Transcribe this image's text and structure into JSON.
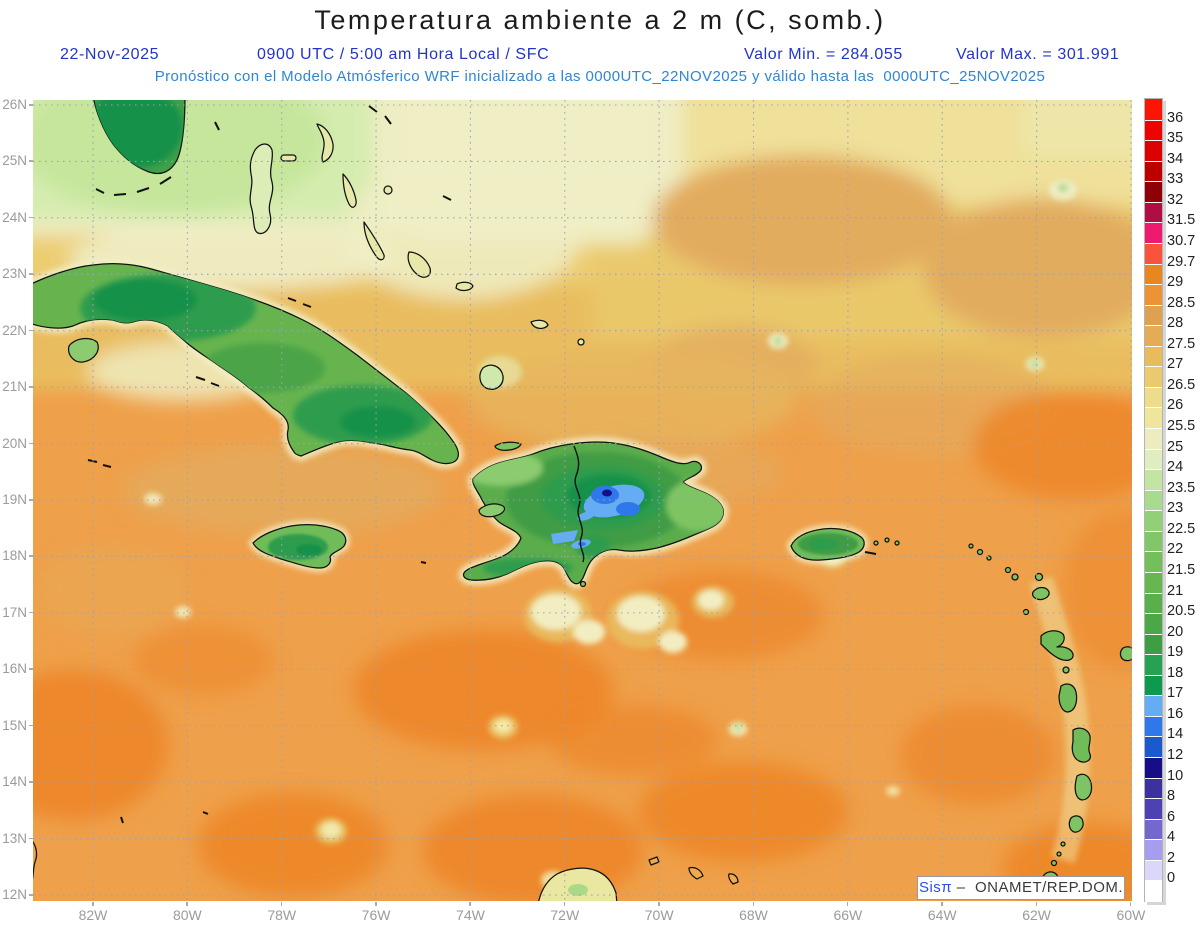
{
  "title": "Temperatura ambiente a 2 m (C, somb.)",
  "header": {
    "date": "22-Nov-2025",
    "time_line": "0900 UTC / 5:00 am Hora Local / SFC",
    "valor_min": "Valor Min. = 284.055",
    "valor_max": "Valor Max. = 301.991",
    "forecast_line": "Pronóstico con el Modelo Atmósferico WRF inicializado a las 0000UTC_22NOV2025 y válido hasta las  0000UTC_25NOV2025"
  },
  "attribution": {
    "brand": "Sisπ",
    "rest": " –  ONAMET/REP.DOM."
  },
  "axes": {
    "lat_labels": [
      "26N",
      "25N",
      "24N",
      "23N",
      "22N",
      "21N",
      "20N",
      "19N",
      "18N",
      "17N",
      "16N",
      "15N",
      "14N",
      "13N",
      "12N"
    ],
    "lon_labels": [
      "82W",
      "80W",
      "78W",
      "76W",
      "74W",
      "72W",
      "70W",
      "68W",
      "66W",
      "64W",
      "62W",
      "60W"
    ]
  },
  "colorbar": {
    "labels": [
      "36",
      "35",
      "34",
      "33",
      "32",
      "31.5",
      "30.7",
      "29.7",
      "29",
      "28.5",
      "28",
      "27.5",
      "27",
      "26.5",
      "26",
      "25.5",
      "25",
      "24",
      "23.5",
      "23",
      "22.5",
      "22",
      "21.5",
      "21",
      "20.5",
      "20",
      "19",
      "18",
      "17",
      "16",
      "14",
      "12",
      "10",
      "8",
      "6",
      "4",
      "2",
      "0"
    ],
    "colors": [
      "#FC1404",
      "#EF0300",
      "#DB0100",
      "#BC0000",
      "#8E0005",
      "#B00D44",
      "#EF1A70",
      "#F9533B",
      "#E8861F",
      "#EC9335",
      "#DFA04F",
      "#E3AC55",
      "#E8BC5C",
      "#EBC96E",
      "#EDDC8A",
      "#EFE69C",
      "#EDEBC0",
      "#E0EDC1",
      "#C2E5A4",
      "#A9DB8E",
      "#92D077",
      "#82C767",
      "#73BF5A",
      "#66B750",
      "#59AF4A",
      "#4CA746",
      "#3E9E44",
      "#27A253",
      "#0C9B4E",
      "#64ACF3",
      "#2F78EC",
      "#1C59CE",
      "#170D87",
      "#3D309F",
      "#4E41B3",
      "#7467CE",
      "#A79DF0",
      "#DBD7F9",
      "#FFFFFF"
    ]
  },
  "chart_data": {
    "type": "heatmap",
    "title": "Temperatura ambiente a 2 m (C, somb.)",
    "value_min": 284.055,
    "value_max": 301.991,
    "scale_ticks": [
      36,
      35,
      34,
      33,
      32,
      31.5,
      30.7,
      29.7,
      29,
      28.5,
      28,
      27.5,
      27,
      26.5,
      26,
      25.5,
      25,
      24,
      23.5,
      23,
      22.5,
      22,
      21.5,
      21,
      20.5,
      20,
      19,
      18,
      17,
      16,
      14,
      12,
      10,
      8,
      6,
      4,
      2,
      0
    ],
    "lat_ticks_deg_n": [
      26,
      25,
      24,
      23,
      22,
      21,
      20,
      19,
      18,
      17,
      16,
      15,
      14,
      13,
      12
    ],
    "lon_ticks_deg_w": [
      82,
      80,
      78,
      76,
      74,
      72,
      70,
      68,
      66,
      64,
      62,
      60
    ],
    "legend_position": "right",
    "grid": "dotted"
  },
  "colors": {
    "header_blue": "#2334C8",
    "forecast_blue": "#2E86D5",
    "axis_gray": "#9B9B9B",
    "gridline": "#9AA3B5",
    "sea_base": "#EFA04A",
    "sea_hot": "#ED8527",
    "land_green": "#5BAD4B",
    "land_dark_green": "#149149",
    "cold_blue": "#64ACF3",
    "coldest_navy": "#170D87",
    "attribution_blue": "#2B4FE8"
  }
}
